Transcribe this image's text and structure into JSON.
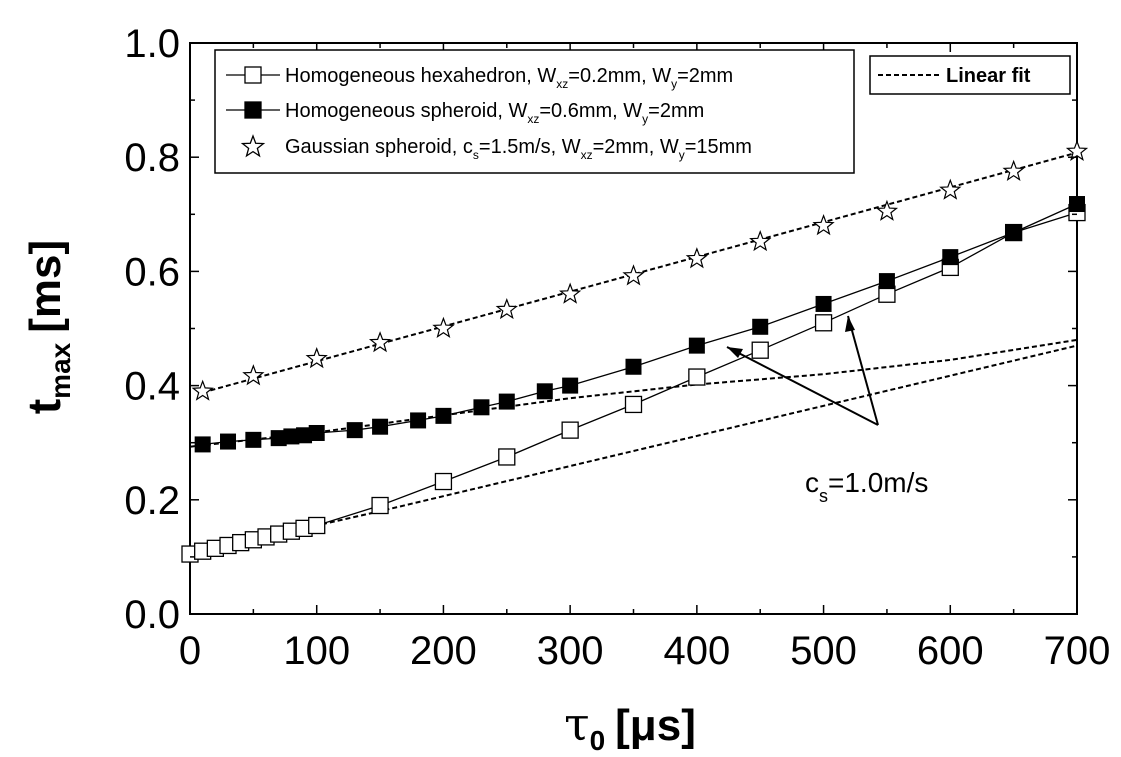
{
  "chart_data": {
    "type": "line",
    "xlabel": {
      "symbol": "τ",
      "sub": "0",
      "unit": "[μs]"
    },
    "ylabel": {
      "main": "t",
      "sub": "max",
      "unit": "[ms]"
    },
    "xlim": [
      0,
      700
    ],
    "ylim": [
      0,
      1.0
    ],
    "xticks": [
      "0",
      "100",
      "200",
      "300",
      "400",
      "500",
      "600",
      "700"
    ],
    "yticks": [
      "0.0",
      "0.2",
      "0.4",
      "0.6",
      "0.8",
      "1.0"
    ],
    "series": [
      {
        "name": "Homogeneous hexahedron",
        "legend": {
          "pre": "Homogeneous hexahedron, W",
          "s1": "xz",
          "mid": "=0.2mm, W",
          "s2": "y",
          "post": "=2mm"
        },
        "marker": "open-square",
        "x": [
          0,
          10,
          20,
          30,
          40,
          50,
          60,
          70,
          80,
          90,
          100,
          150,
          200,
          250,
          300,
          350,
          400,
          450,
          500,
          550,
          600,
          650,
          700
        ],
        "y": [
          0.105,
          0.11,
          0.115,
          0.12,
          0.125,
          0.13,
          0.135,
          0.14,
          0.145,
          0.15,
          0.155,
          0.19,
          0.232,
          0.275,
          0.322,
          0.367,
          0.415,
          0.462,
          0.51,
          0.56,
          0.607,
          0.668,
          0.703
        ]
      },
      {
        "name": "Homogeneous spheroid",
        "legend": {
          "pre": "Homogeneous spheroid, W",
          "s1": "xz",
          "mid": "=0.6mm, W",
          "s2": "y",
          "post": "=2mm"
        },
        "marker": "filled-square",
        "x": [
          10,
          30,
          50,
          70,
          80,
          90,
          100,
          130,
          150,
          180,
          200,
          230,
          250,
          280,
          300,
          350,
          400,
          450,
          500,
          550,
          600,
          650,
          700
        ],
        "y": [
          0.297,
          0.302,
          0.305,
          0.308,
          0.311,
          0.313,
          0.317,
          0.322,
          0.328,
          0.339,
          0.347,
          0.362,
          0.372,
          0.39,
          0.4,
          0.433,
          0.47,
          0.503,
          0.543,
          0.583,
          0.625,
          0.668,
          0.718
        ]
      },
      {
        "name": "Gaussian spheroid",
        "legend": {
          "pre": "Gaussian spheroid, c",
          "s0": "s",
          "pre2": "=1.5m/s, W",
          "s1": "xz",
          "mid": "=2mm, W",
          "s2": "y",
          "post": "=15mm"
        },
        "marker": "open-star",
        "x": [
          10,
          50,
          100,
          150,
          200,
          250,
          300,
          350,
          400,
          450,
          500,
          550,
          600,
          650,
          700
        ],
        "y": [
          0.39,
          0.417,
          0.447,
          0.475,
          0.5,
          0.533,
          0.56,
          0.592,
          0.622,
          0.652,
          0.68,
          0.705,
          0.742,
          0.775,
          0.81
        ]
      }
    ],
    "fits": [
      {
        "name": "Gaussian spheroid fit",
        "x": [
          10,
          700
        ],
        "y": [
          0.388,
          0.808
        ]
      },
      {
        "name": "Spheroid fit",
        "x": [
          0,
          100,
          200,
          300,
          400,
          500,
          600,
          700
        ],
        "y": [
          0.293,
          0.318,
          0.348,
          0.378,
          0.402,
          0.42,
          0.445,
          0.48
        ]
      },
      {
        "name": "Hexahedron fit",
        "x": [
          0,
          100,
          150,
          700
        ],
        "y": [
          0.1,
          0.155,
          0.18,
          0.47
        ]
      }
    ],
    "fit_legend": "Linear fit",
    "annotation": {
      "pre": "c",
      "sub": "s",
      "post": "=1.0m/s"
    }
  }
}
